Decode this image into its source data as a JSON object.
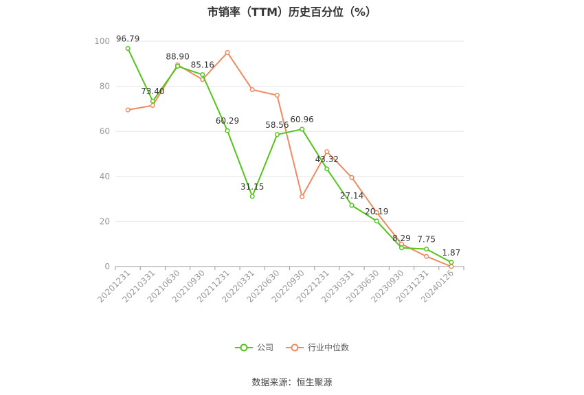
{
  "title": "市销率（TTM）历史百分位（%）",
  "source": "数据来源：恒生聚源",
  "colors": {
    "company": "#52c41a",
    "industry": "#f0895f",
    "grid": "#e6e6e6",
    "axis": "#999999",
    "text": "#999999"
  },
  "chart_data": {
    "type": "line",
    "title": "市销率（TTM）历史百分位（%）",
    "categories": [
      "20201231",
      "20210331",
      "20210630",
      "20210930",
      "20211231",
      "20220331",
      "20220630",
      "20220930",
      "20221231",
      "20230331",
      "20230630",
      "20230930",
      "20231231",
      "20240126"
    ],
    "ylim": [
      0,
      100
    ],
    "yticks": [
      0,
      20,
      40,
      60,
      80,
      100
    ],
    "grid": true,
    "legend": "bottom-center",
    "series": [
      {
        "name": "公司",
        "color": "#52c41a",
        "labeled": true,
        "values": [
          96.79,
          73.4,
          88.9,
          85.16,
          60.29,
          31.15,
          58.56,
          60.96,
          43.32,
          27.14,
          20.19,
          8.29,
          7.75,
          1.87
        ]
      },
      {
        "name": "行业中位数",
        "color": "#f0895f",
        "labeled": false,
        "values": [
          69.5,
          71.5,
          89.5,
          83.0,
          95.0,
          78.5,
          76.0,
          31.0,
          51.0,
          39.5,
          24.0,
          10.0,
          4.5,
          0.0
        ]
      }
    ]
  }
}
